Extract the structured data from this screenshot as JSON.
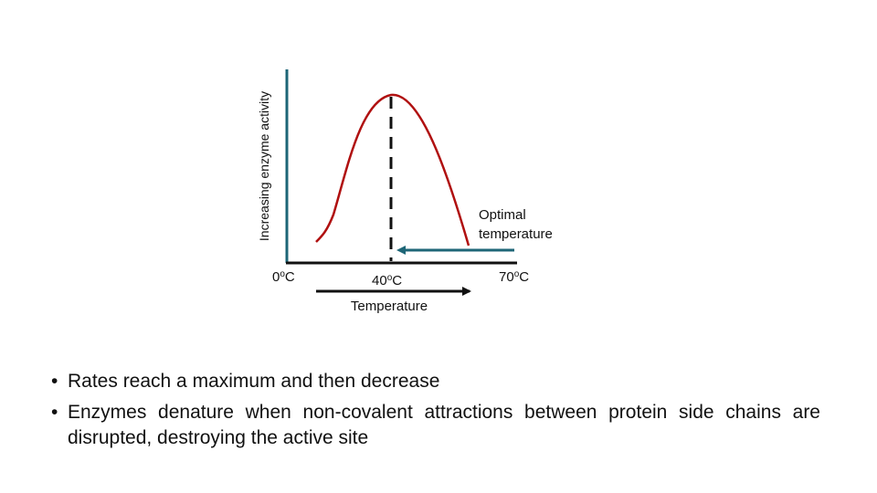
{
  "diagram": {
    "y_axis_label": "Increasing enzyme activity",
    "x_axis_label": "Temperature",
    "tick_left": "0",
    "tick_mid": "40",
    "tick_right": "70",
    "degree_sup": "o",
    "unit": "C",
    "annotation_line1": "Optimal",
    "annotation_line2": "temperature",
    "colors": {
      "curve": "#b01010",
      "y_axis": "#1e6677",
      "x_axis": "#111111",
      "annotation_arrow": "#1e6677"
    }
  },
  "bullets": [
    {
      "marker": "•",
      "text": "Rates reach a maximum and then decrease"
    },
    {
      "marker": "•",
      "text": "Enzymes denature when non-covalent attractions between protein side chains are disrupted, destroying the active site"
    }
  ]
}
